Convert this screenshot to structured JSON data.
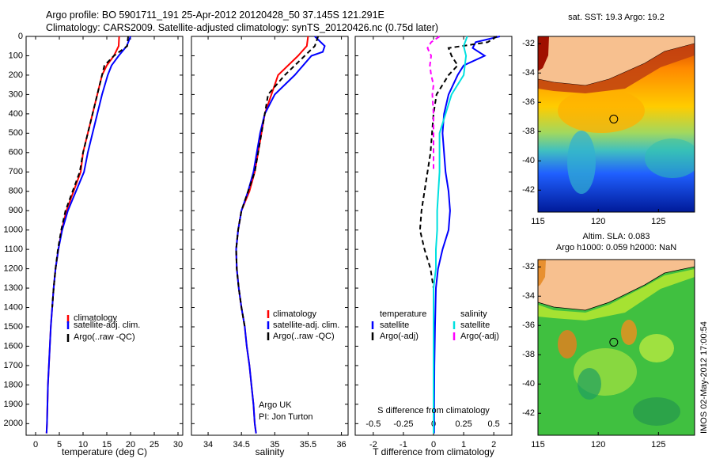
{
  "header": {
    "line1": "Argo profile: BO 5901711_191 25-Apr-2012 20120428_50 37.145S 121.291E",
    "line2": "Climatology: CARS2009. Satellite-adjusted climatology: synTS_20120426.nc (0.75d later)"
  },
  "colors": {
    "climatology": "#ff0000",
    "satellite": "#0000ff",
    "argo": "#000000",
    "satellite_salinity": "#00e0e0",
    "argo_salinity": "#ff00ff",
    "land": "#f7c08f"
  },
  "chart_data": [
    {
      "type": "line",
      "panel": "temperature",
      "xlabel": "temperature (deg C)",
      "ylabel": "",
      "xlim": [
        -2,
        31
      ],
      "ylim": [
        2060,
        0
      ],
      "xticks": [
        0,
        5,
        10,
        15,
        20,
        25,
        30
      ],
      "yticks": [
        0,
        100,
        200,
        300,
        400,
        500,
        600,
        700,
        800,
        900,
        1000,
        1100,
        1200,
        1300,
        1400,
        1500,
        1600,
        1700,
        1800,
        1900,
        2000
      ],
      "legend": [
        "climatology",
        "satellite-adj. clim.",
        "Argo(..raw -QC)"
      ],
      "series": [
        {
          "name": "climatology",
          "color": "#ff0000",
          "depth": [
            0,
            50,
            100,
            150,
            200,
            300,
            400,
            500,
            600,
            700,
            800,
            900,
            1000,
            1100,
            1200,
            1300,
            1400,
            1500,
            1600,
            1700,
            1800,
            1900,
            2000,
            2050
          ],
          "values": [
            17.6,
            17.5,
            16.5,
            15,
            14,
            13,
            12,
            11,
            10,
            9.5,
            8,
            6.5,
            5.5,
            4.8,
            4.2,
            3.8,
            3.5,
            3.2,
            3.0,
            2.8,
            2.6,
            2.5,
            2.4,
            2.3
          ]
        },
        {
          "name": "satellite-adj. clim.",
          "color": "#0000ff",
          "depth": [
            0,
            50,
            100,
            150,
            200,
            300,
            400,
            500,
            600,
            700,
            800,
            900,
            1000,
            1100,
            1200,
            1300,
            1400,
            1500,
            1600,
            1700,
            1800,
            1900,
            2000,
            2050
          ],
          "values": [
            20,
            19.2,
            17.5,
            16,
            15.2,
            14,
            13,
            12,
            11,
            10.2,
            8.5,
            6.8,
            5.6,
            4.8,
            4.2,
            3.8,
            3.5,
            3.2,
            3.0,
            2.8,
            2.6,
            2.5,
            2.4,
            2.3
          ]
        },
        {
          "name": "Argo(..raw -QC)",
          "color": "#000000",
          "dashed": true,
          "depth": [
            0,
            50,
            100,
            150,
            200,
            300,
            400,
            500,
            600,
            700,
            800,
            900,
            1000,
            1100,
            1200,
            1300,
            1400
          ],
          "values": [
            19.5,
            19.3,
            16.5,
            14.5,
            14,
            13,
            12,
            11,
            10,
            9.3,
            7.8,
            6.3,
            5.4,
            4.7,
            4.2,
            3.8,
            3.5
          ]
        }
      ]
    },
    {
      "type": "line",
      "panel": "salinity",
      "xlabel": "salinity",
      "xlim": [
        33.75,
        36.1
      ],
      "ylim": [
        2060,
        0
      ],
      "xticks": [
        34,
        34.5,
        35,
        35.5,
        36
      ],
      "legend": [
        "climatology",
        "satellite-adj. clim.",
        "Argo(..raw -QC)"
      ],
      "annotations": [
        "Argo UK",
        "PI: Jon Turton"
      ],
      "series": [
        {
          "name": "climatology",
          "color": "#ff0000",
          "depth": [
            0,
            50,
            100,
            200,
            300,
            400,
            500,
            600,
            700,
            800,
            900,
            1000,
            1100,
            1200,
            1300,
            1400,
            1500,
            1600,
            1700,
            1800,
            1900,
            2000,
            2050
          ],
          "values": [
            35.5,
            35.48,
            35.35,
            35.05,
            34.95,
            34.85,
            34.8,
            34.75,
            34.7,
            34.62,
            34.5,
            34.45,
            34.42,
            34.43,
            34.46,
            34.5,
            34.55,
            34.58,
            34.62,
            34.65,
            34.68,
            34.7,
            34.72
          ]
        },
        {
          "name": "satellite-adj. clim.",
          "color": "#0000ff",
          "depth": [
            0,
            50,
            80,
            100,
            200,
            300,
            400,
            500,
            600,
            700,
            800,
            900,
            1000,
            1100,
            1200,
            1300,
            1400,
            1500,
            1600,
            1700,
            1800,
            1900,
            2000,
            2050
          ],
          "values": [
            35.6,
            35.75,
            35.72,
            35.55,
            35.3,
            35.0,
            34.85,
            34.78,
            34.73,
            34.68,
            34.6,
            34.5,
            34.45,
            34.42,
            34.43,
            34.46,
            34.5,
            34.55,
            34.58,
            34.62,
            34.65,
            34.68,
            34.7,
            34.72
          ]
        },
        {
          "name": "Argo(..raw -QC)",
          "color": "#000000",
          "dashed": true,
          "depth": [
            0,
            50,
            100,
            200,
            300,
            400,
            500,
            600,
            700,
            800,
            900,
            1000,
            1100,
            1200,
            1300,
            1400,
            1500
          ],
          "values": [
            35.65,
            35.6,
            35.45,
            35.15,
            34.9,
            34.85,
            34.8,
            34.75,
            34.7,
            34.6,
            34.5,
            34.45,
            34.42,
            34.43,
            34.46,
            34.5,
            34.55
          ]
        }
      ]
    },
    {
      "type": "line",
      "panel": "difference",
      "xlabel": "T difference from climatology",
      "xlabel_top": "S difference from climatology",
      "t_xlim": [
        -2.6,
        2.6
      ],
      "t_xticks": [
        -2,
        -1,
        0,
        1,
        2
      ],
      "s_xticks": [
        -0.5,
        -0.25,
        0,
        0.25,
        0.5
      ],
      "ylim": [
        2060,
        0
      ],
      "legend_temperature": [
        "temperature",
        "satellite",
        "Argo(-adj)"
      ],
      "legend_salinity": [
        "salinity",
        "satellite",
        "Argo(-adj)"
      ],
      "series": [
        {
          "name": "satellite",
          "kind": "temperature",
          "color": "#0000ff",
          "depth": [
            0,
            30,
            60,
            100,
            150,
            200,
            300,
            400,
            500,
            600,
            700,
            800,
            900,
            1000,
            1100,
            1200,
            1300,
            1500,
            1700,
            1900,
            2050
          ],
          "values": [
            2.2,
            1.4,
            1.3,
            1.7,
            1.0,
            0.8,
            0.5,
            0.35,
            0.3,
            0.35,
            0.4,
            0.5,
            0.55,
            0.5,
            0.3,
            0.15,
            0.08,
            0.05,
            0.03,
            0.02,
            0.02
          ]
        },
        {
          "name": "Argo(-adj)",
          "kind": "temperature",
          "color": "#000000",
          "dashed": true,
          "depth": [
            0,
            30,
            60,
            100,
            150,
            200,
            250,
            300,
            400,
            500,
            600,
            700,
            800,
            900,
            1000,
            1100,
            1200,
            1300
          ],
          "values": [
            2.1,
            1.8,
            0.5,
            0.6,
            0.8,
            0.5,
            0.3,
            0.1,
            0.0,
            -0.05,
            -0.1,
            -0.2,
            -0.3,
            -0.4,
            -0.45,
            -0.3,
            -0.1,
            0.0
          ]
        },
        {
          "name": "satellite",
          "kind": "salinity",
          "color": "#00e0e0",
          "depth": [
            0,
            50,
            100,
            150,
            200,
            300,
            400,
            500,
            600,
            700,
            800,
            900,
            1000,
            1100,
            1200,
            1300,
            1500,
            1700,
            1900,
            2050
          ],
          "values": [
            0.28,
            0.25,
            0.27,
            0.26,
            0.25,
            0.15,
            0.1,
            0.05,
            0.05,
            0.05,
            0.04,
            0.03,
            0.03,
            0.02,
            0.02,
            0.0,
            0.0,
            0.0,
            0.0,
            0.0
          ]
        },
        {
          "name": "Argo(-adj)",
          "kind": "salinity",
          "color": "#ff00ff",
          "dashed": true,
          "depth": [
            0,
            30,
            60,
            100,
            150,
            200,
            250,
            300,
            400,
            500,
            600,
            700
          ],
          "values": [
            0.05,
            -0.02,
            -0.05,
            -0.02,
            -0.03,
            -0.02,
            0.0,
            -0.01,
            0.0,
            0.0,
            0.0,
            0.0
          ]
        }
      ]
    },
    {
      "type": "heatmap",
      "panel": "sst-map",
      "title": "sat. SST: 19.3 Argo: 19.2",
      "xticks": [
        115,
        120,
        125
      ],
      "yticks": [
        -32,
        -34,
        -36,
        -38,
        -40,
        -42
      ],
      "xlim": [
        115,
        128
      ],
      "ylim": [
        -43.5,
        -31.5
      ],
      "argo_position": [
        121.291,
        -37.145
      ]
    },
    {
      "type": "heatmap",
      "panel": "sla-map",
      "title": "Altim. SLA: 0.083",
      "subtitle": "Argo h1000: 0.059 h2000: NaN",
      "xticks": [
        115,
        120,
        125
      ],
      "yticks": [
        -32,
        -34,
        -36,
        -38,
        -40,
        -42
      ],
      "xlim": [
        115,
        128
      ],
      "ylim": [
        -43.5,
        -31.5
      ],
      "argo_position": [
        121.291,
        -37.145
      ]
    }
  ],
  "side_label": "IMOS 02-May-2012 17:00:54"
}
